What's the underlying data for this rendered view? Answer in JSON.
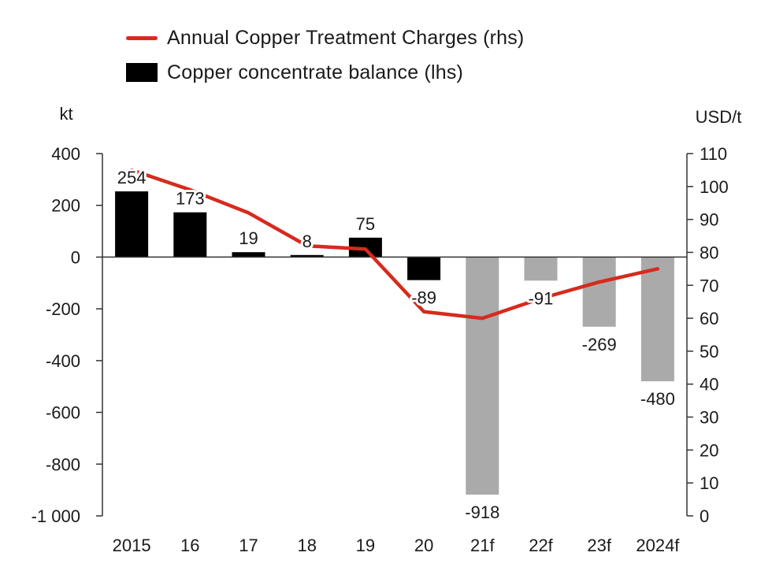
{
  "legend": {
    "line_label": "Annual Copper Treatment Charges (rhs)",
    "bar_label": "Copper concentrate balance (lhs)"
  },
  "chart_data": {
    "type": "bar",
    "categories": [
      "2015",
      "16",
      "17",
      "18",
      "19",
      "20",
      "21f",
      "22f",
      "23f",
      "2024f"
    ],
    "series": [
      {
        "name": "Copper concentrate balance (lhs)",
        "type": "bar",
        "axis": "left",
        "values": [
          254,
          173,
          19,
          8,
          75,
          -89,
          -918,
          -91,
          -269,
          -480
        ],
        "data_labels": [
          "254",
          "173",
          "19",
          "8",
          "75",
          "-89",
          "-918",
          "-91",
          "-269",
          "-480"
        ],
        "colors": [
          "#000000",
          "#000000",
          "#000000",
          "#000000",
          "#000000",
          "#000000",
          "#aaaaaa",
          "#aaaaaa",
          "#aaaaaa",
          "#aaaaaa"
        ]
      },
      {
        "name": "Annual Copper Treatment Charges (rhs)",
        "type": "line",
        "axis": "right",
        "values": [
          105,
          99,
          92,
          82,
          81,
          62,
          60,
          66,
          71,
          75
        ],
        "color": "#d52b1e"
      }
    ],
    "left_axis": {
      "label": "kt",
      "range": [
        -1000,
        400
      ],
      "ticks": [
        400,
        200,
        0,
        -200,
        -400,
        -600,
        -800,
        -1000
      ],
      "tick_labels": [
        "400",
        "200",
        "0",
        "-200",
        "-400",
        "-600",
        "-800",
        "-1 000"
      ]
    },
    "right_axis": {
      "label": "USD/t",
      "range": [
        0,
        110
      ],
      "ticks": [
        110,
        100,
        90,
        80,
        70,
        60,
        50,
        40,
        30,
        20,
        10,
        0
      ],
      "tick_labels": [
        "110",
        "100",
        "90",
        "80",
        "70",
        "60",
        "50",
        "40",
        "30",
        "20",
        "10",
        "0"
      ]
    },
    "grid": false,
    "legend_position": "top-left"
  }
}
